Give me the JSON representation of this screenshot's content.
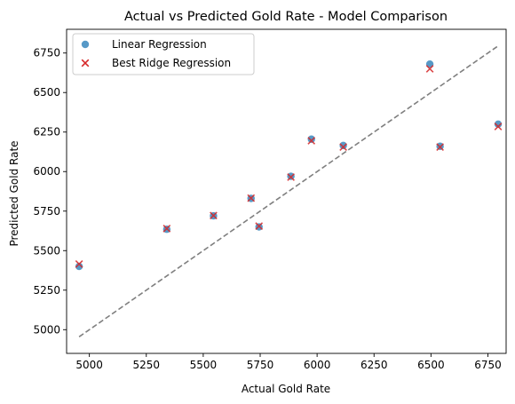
{
  "chart_data": {
    "type": "scatter",
    "title": "Actual vs Predicted Gold Rate - Model Comparison",
    "xlabel": "Actual Gold Rate",
    "ylabel": "Predicted Gold Rate",
    "xlim": [
      4900,
      6830
    ],
    "ylim": [
      4850,
      6900
    ],
    "xticks": [
      5000,
      5250,
      5500,
      5750,
      6000,
      6250,
      6500,
      6750
    ],
    "yticks": [
      5000,
      5250,
      5500,
      5750,
      6000,
      6250,
      6500,
      6750
    ],
    "grid": false,
    "legend_position": "top-left",
    "series": [
      {
        "name": "Linear Regression",
        "marker": "circle",
        "color": "#1f77b4",
        "points": [
          [
            4955,
            5400
          ],
          [
            5340,
            5635
          ],
          [
            5545,
            5720
          ],
          [
            5710,
            5830
          ],
          [
            5745,
            5650
          ],
          [
            5885,
            5970
          ],
          [
            5975,
            6205
          ],
          [
            6115,
            6165
          ],
          [
            6495,
            6680
          ],
          [
            6540,
            6160
          ],
          [
            6795,
            6300
          ]
        ]
      },
      {
        "name": "Best Ridge Regression",
        "marker": "x",
        "color": "#d62728",
        "points": [
          [
            4955,
            5415
          ],
          [
            5340,
            5640
          ],
          [
            5545,
            5722
          ],
          [
            5710,
            5832
          ],
          [
            5745,
            5655
          ],
          [
            5885,
            5965
          ],
          [
            5975,
            6195
          ],
          [
            6115,
            6155
          ],
          [
            6495,
            6650
          ],
          [
            6540,
            6155
          ],
          [
            6795,
            6285
          ]
        ]
      }
    ],
    "reference_line": {
      "style": "dashed",
      "color": "#7f7f7f",
      "from": [
        4955,
        4955
      ],
      "to": [
        6795,
        6795
      ]
    }
  }
}
